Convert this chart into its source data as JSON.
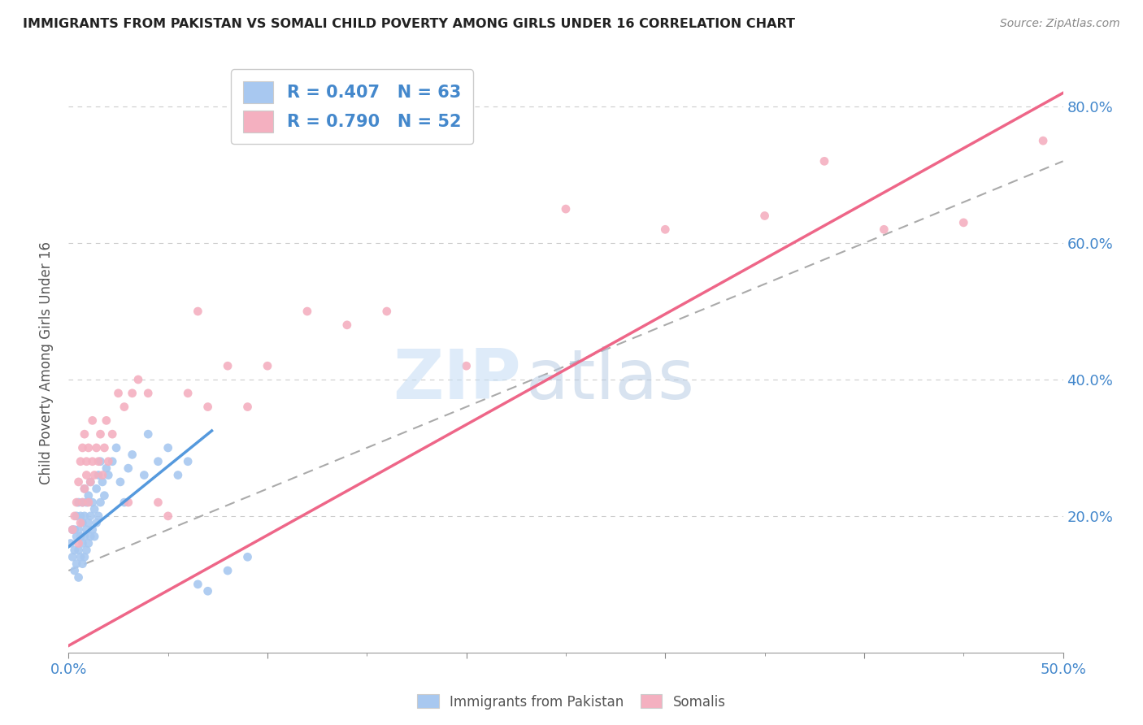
{
  "title": "IMMIGRANTS FROM PAKISTAN VS SOMALI CHILD POVERTY AMONG GIRLS UNDER 16 CORRELATION CHART",
  "source": "Source: ZipAtlas.com",
  "ylabel": "Child Poverty Among Girls Under 16",
  "xlim": [
    0.0,
    0.5
  ],
  "ylim": [
    0.0,
    0.85
  ],
  "pakistan_color": "#a8c8f0",
  "somali_color": "#f4b0c0",
  "pakistan_R": 0.407,
  "pakistan_N": 63,
  "somali_R": 0.79,
  "somali_N": 52,
  "pakistan_line_color": "#5599dd",
  "somali_line_color": "#ee6688",
  "pakistan_trendline_x": [
    0.0,
    0.072
  ],
  "pakistan_trendline_y": [
    0.155,
    0.325
  ],
  "somali_trendline_x": [
    0.0,
    0.5
  ],
  "somali_trendline_y": [
    0.01,
    0.82
  ],
  "dashed_line_x": [
    0.0,
    0.5
  ],
  "dashed_line_y": [
    0.12,
    0.72
  ],
  "pakistan_scatter_x": [
    0.001,
    0.002,
    0.002,
    0.003,
    0.003,
    0.003,
    0.004,
    0.004,
    0.004,
    0.005,
    0.005,
    0.005,
    0.005,
    0.006,
    0.006,
    0.006,
    0.007,
    0.007,
    0.007,
    0.007,
    0.008,
    0.008,
    0.008,
    0.008,
    0.009,
    0.009,
    0.009,
    0.01,
    0.01,
    0.01,
    0.011,
    0.011,
    0.011,
    0.012,
    0.012,
    0.013,
    0.013,
    0.014,
    0.014,
    0.015,
    0.015,
    0.016,
    0.016,
    0.017,
    0.018,
    0.019,
    0.02,
    0.022,
    0.024,
    0.026,
    0.028,
    0.03,
    0.032,
    0.038,
    0.04,
    0.045,
    0.05,
    0.055,
    0.06,
    0.065,
    0.07,
    0.08,
    0.09
  ],
  "pakistan_scatter_y": [
    0.16,
    0.14,
    0.18,
    0.12,
    0.15,
    0.18,
    0.13,
    0.17,
    0.2,
    0.11,
    0.15,
    0.18,
    0.22,
    0.14,
    0.17,
    0.2,
    0.13,
    0.16,
    0.19,
    0.22,
    0.14,
    0.17,
    0.2,
    0.24,
    0.15,
    0.18,
    0.22,
    0.16,
    0.19,
    0.23,
    0.17,
    0.2,
    0.25,
    0.18,
    0.22,
    0.17,
    0.21,
    0.19,
    0.24,
    0.2,
    0.26,
    0.22,
    0.28,
    0.25,
    0.23,
    0.27,
    0.26,
    0.28,
    0.3,
    0.25,
    0.22,
    0.27,
    0.29,
    0.26,
    0.32,
    0.28,
    0.3,
    0.26,
    0.28,
    0.1,
    0.09,
    0.12,
    0.14
  ],
  "somali_scatter_x": [
    0.002,
    0.003,
    0.004,
    0.005,
    0.005,
    0.006,
    0.006,
    0.007,
    0.007,
    0.008,
    0.008,
    0.009,
    0.009,
    0.01,
    0.01,
    0.011,
    0.012,
    0.012,
    0.013,
    0.014,
    0.015,
    0.016,
    0.017,
    0.018,
    0.019,
    0.02,
    0.022,
    0.025,
    0.028,
    0.03,
    0.032,
    0.035,
    0.04,
    0.045,
    0.05,
    0.06,
    0.065,
    0.07,
    0.08,
    0.09,
    0.1,
    0.12,
    0.14,
    0.16,
    0.2,
    0.25,
    0.3,
    0.35,
    0.38,
    0.41,
    0.45,
    0.49
  ],
  "somali_scatter_y": [
    0.18,
    0.2,
    0.22,
    0.16,
    0.25,
    0.19,
    0.28,
    0.22,
    0.3,
    0.24,
    0.32,
    0.26,
    0.28,
    0.22,
    0.3,
    0.25,
    0.28,
    0.34,
    0.26,
    0.3,
    0.28,
    0.32,
    0.26,
    0.3,
    0.34,
    0.28,
    0.32,
    0.38,
    0.36,
    0.22,
    0.38,
    0.4,
    0.38,
    0.22,
    0.2,
    0.38,
    0.5,
    0.36,
    0.42,
    0.36,
    0.42,
    0.5,
    0.48,
    0.5,
    0.42,
    0.65,
    0.62,
    0.64,
    0.72,
    0.62,
    0.63,
    0.75
  ]
}
